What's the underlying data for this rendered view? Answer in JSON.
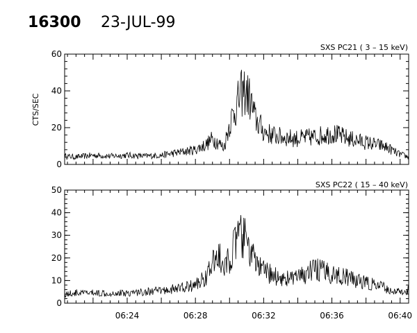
{
  "header": {
    "event_id": "16300",
    "date": "23-JUL-99"
  },
  "chart_data": [
    {
      "type": "line",
      "title": "SXS PC21  (  3 – 15 keV)",
      "xlabel": "",
      "ylabel": "CTS/SEC",
      "xlim": [
        "06:20:20",
        "06:40:30"
      ],
      "ylim": [
        0,
        60
      ],
      "yticks": [
        0,
        20,
        40,
        60
      ],
      "xticks": [
        "06:24",
        "06:28",
        "06:32",
        "06:36",
        "06:40"
      ],
      "tick_labels_shown": false,
      "grid": false,
      "series": [
        {
          "x": [
            "06:20:20",
            "06:21:00",
            "06:22:00",
            "06:23:00",
            "06:24:00",
            "06:25:00",
            "06:26:00",
            "06:27:00",
            "06:28:00",
            "06:28:40",
            "06:29:00",
            "06:29:20",
            "06:29:40",
            "06:30:00",
            "06:30:20",
            "06:30:40",
            "06:30:55",
            "06:31:10",
            "06:31:30",
            "06:32:00",
            "06:32:30",
            "06:33:00",
            "06:34:00",
            "06:35:00",
            "06:36:00",
            "06:37:00",
            "06:38:00",
            "06:39:00",
            "06:39:30",
            "06:39:50",
            "06:40:30"
          ],
          "values": [
            4.5,
            4,
            5,
            4.5,
            5,
            4.5,
            5,
            6.5,
            8,
            11,
            14,
            12,
            9,
            22,
            30,
            38,
            40,
            36,
            25,
            18,
            16,
            15,
            14,
            15,
            17,
            14,
            12,
            10,
            8,
            6,
            4
          ]
        }
      ]
    },
    {
      "type": "line",
      "title": "SXS PC22  ( 15 – 40 keV)",
      "xlabel": "",
      "ylabel": "",
      "xlim": [
        "06:20:20",
        "06:40:30"
      ],
      "ylim": [
        0,
        50
      ],
      "yticks": [
        0,
        10,
        20,
        30,
        40,
        50
      ],
      "xticks": [
        "06:24",
        "06:28",
        "06:32",
        "06:36",
        "06:40"
      ],
      "grid": false,
      "series": [
        {
          "x": [
            "06:20:20",
            "06:21:00",
            "06:22:00",
            "06:23:00",
            "06:24:00",
            "06:25:00",
            "06:26:00",
            "06:27:00",
            "06:28:00",
            "06:28:40",
            "06:29:00",
            "06:29:20",
            "06:29:40",
            "06:30:00",
            "06:30:20",
            "06:30:40",
            "06:30:55",
            "06:31:10",
            "06:31:30",
            "06:32:00",
            "06:33:00",
            "06:34:00",
            "06:35:00",
            "06:36:00",
            "06:37:00",
            "06:38:00",
            "06:39:00",
            "06:39:40",
            "06:40:00",
            "06:40:30"
          ],
          "values": [
            4,
            4.5,
            4.5,
            4.5,
            4.5,
            5,
            5.5,
            6.5,
            8,
            12,
            17,
            22,
            14,
            20,
            26,
            30,
            28,
            24,
            18,
            14,
            11,
            11,
            15,
            13,
            11,
            9,
            7,
            5,
            5,
            6
          ]
        }
      ]
    }
  ]
}
